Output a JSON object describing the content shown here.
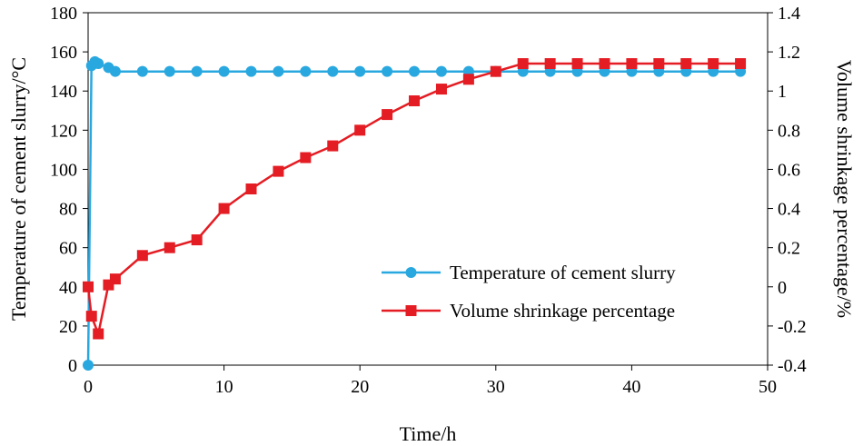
{
  "chart_data": {
    "type": "line",
    "title": "",
    "xlabel": "Time/h",
    "ylabel": "Temperature of cement slurry/°C",
    "y2label": "Volume shrinkage percentage/%",
    "xlim": [
      0,
      50
    ],
    "ylim": [
      0,
      180
    ],
    "y2lim": [
      -0.4,
      1.4
    ],
    "xticks": [
      0,
      10,
      20,
      30,
      40,
      50
    ],
    "xtick_labels": [
      "0",
      "10",
      "20",
      "30",
      "40",
      "50"
    ],
    "yticks": [
      0,
      20,
      40,
      60,
      80,
      100,
      120,
      140,
      160,
      180
    ],
    "ytick_labels": [
      "0",
      "20",
      "40",
      "60",
      "80",
      "100",
      "120",
      "140",
      "160",
      "180"
    ],
    "y2ticks": [
      -0.4,
      -0.2,
      0,
      0.2,
      0.4,
      0.6,
      0.8,
      1.0,
      1.2,
      1.4
    ],
    "y2tick_labels": [
      "-0.4",
      "-0.2",
      "0",
      "0.2",
      "0.4",
      "0.6",
      "0.8",
      "1",
      "1.2",
      "1.4"
    ],
    "grid": false,
    "legend_position": "bottom-right",
    "series": [
      {
        "name": "Temperature of cement slurry",
        "axis": "left",
        "marker": "circle",
        "color": "#29a8e0",
        "x": [
          0,
          0.25,
          0.5,
          0.75,
          1.5,
          2,
          4,
          6,
          8,
          10,
          12,
          14,
          16,
          18,
          20,
          22,
          24,
          26,
          28,
          30,
          32,
          34,
          36,
          38,
          40,
          42,
          44,
          46,
          48
        ],
        "values": [
          0,
          153,
          155,
          154,
          152,
          150,
          150,
          150,
          150,
          150,
          150,
          150,
          150,
          150,
          150,
          150,
          150,
          150,
          150,
          150,
          150,
          150,
          150,
          150,
          150,
          150,
          150,
          150,
          150
        ]
      },
      {
        "name": "Volume shrinkage percentage",
        "axis": "right",
        "marker": "square",
        "color": "#e41c23",
        "x": [
          0,
          0.25,
          0.75,
          1.5,
          2,
          4,
          6,
          8,
          10,
          12,
          14,
          16,
          18,
          20,
          22,
          24,
          26,
          28,
          30,
          32,
          34,
          36,
          38,
          40,
          42,
          44,
          46,
          48
        ],
        "values": [
          0,
          -0.15,
          -0.24,
          0.01,
          0.04,
          0.16,
          0.2,
          0.24,
          0.4,
          0.5,
          0.59,
          0.66,
          0.72,
          0.8,
          0.88,
          0.95,
          1.01,
          1.06,
          1.1,
          1.14,
          1.14,
          1.14,
          1.14,
          1.14,
          1.14,
          1.14,
          1.14,
          1.14
        ]
      }
    ]
  }
}
